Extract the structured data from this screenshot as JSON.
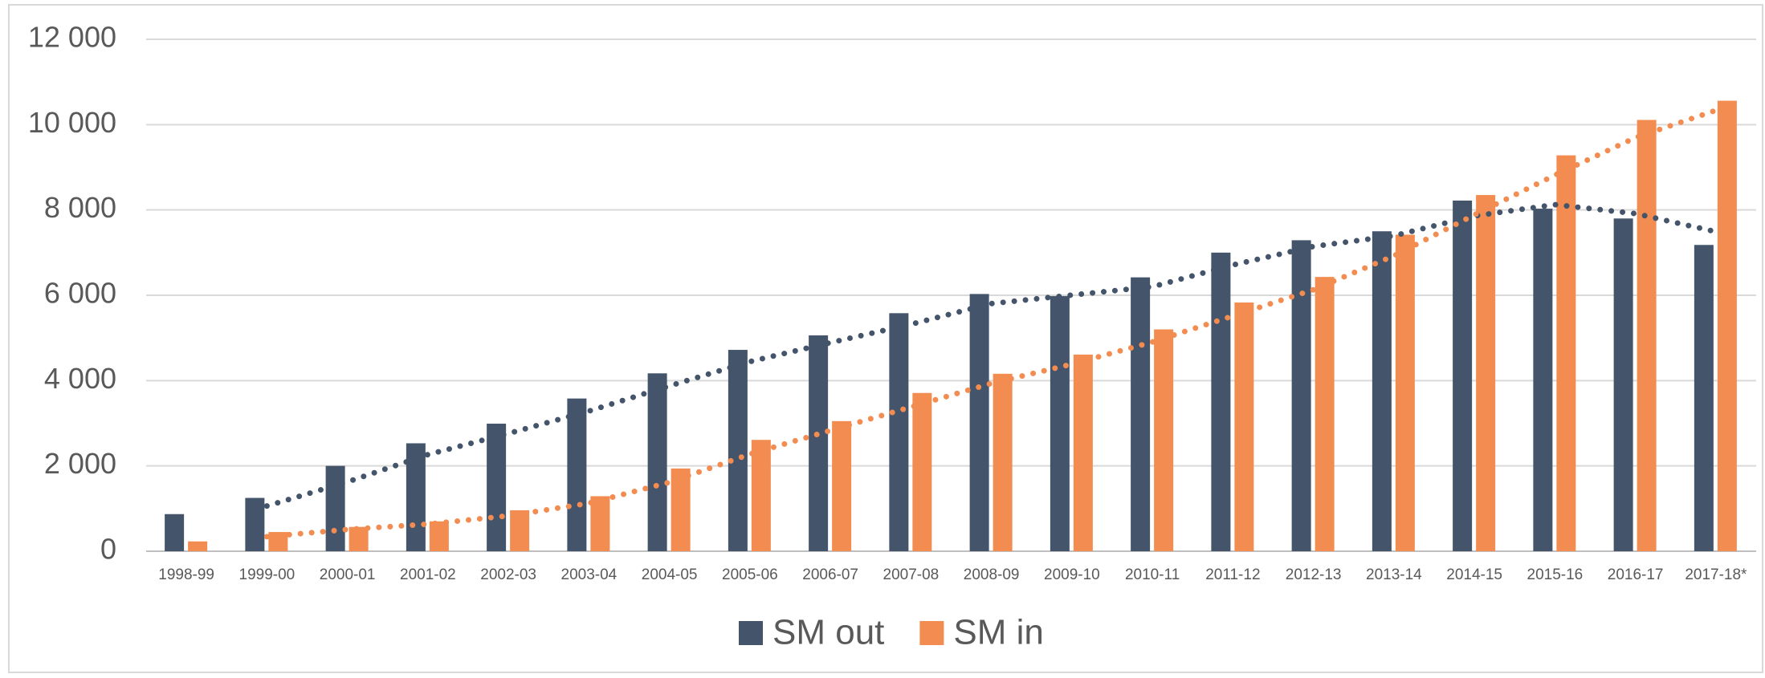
{
  "chart_data": {
    "type": "bar",
    "categories": [
      "1998-99",
      "1999-00",
      "2000-01",
      "2001-02",
      "2002-03",
      "2003-04",
      "2004-05",
      "2005-06",
      "2006-07",
      "2007-08",
      "2008-09",
      "2009-10",
      "2010-11",
      "2011-12",
      "2012-13",
      "2013-14",
      "2014-15",
      "2015-16",
      "2016-17",
      "2017-18*"
    ],
    "series": [
      {
        "name": "SM out",
        "color": "#44546a",
        "values": [
          870,
          1250,
          2000,
          2530,
          2990,
          3580,
          4170,
          4720,
          5060,
          5580,
          6030,
          5980,
          6420,
          7000,
          7290,
          7500,
          8220,
          8030,
          7800,
          7180
        ]
      },
      {
        "name": "SM in",
        "color": "#f28c50",
        "values": [
          230,
          450,
          570,
          700,
          960,
          1290,
          1940,
          2610,
          3050,
          3710,
          4160,
          4610,
          5200,
          5830,
          6430,
          7420,
          8350,
          9280,
          10110,
          10560
        ]
      }
    ],
    "ylim": [
      0,
      12000
    ],
    "yticks": [
      0,
      {
        "value": 2000,
        "label": "2 000"
      },
      {
        "value": 4000,
        "label": "4 000"
      },
      {
        "value": 6000,
        "label": "6 000"
      },
      {
        "value": 8000,
        "label": "8 000"
      },
      {
        "value": 10000,
        "label": "10 000"
      },
      {
        "value": 12000,
        "label": "12 000"
      }
    ],
    "grid": true,
    "legend": "bottom",
    "trendline": {
      "type": "moving_average",
      "period": 2
    }
  }
}
